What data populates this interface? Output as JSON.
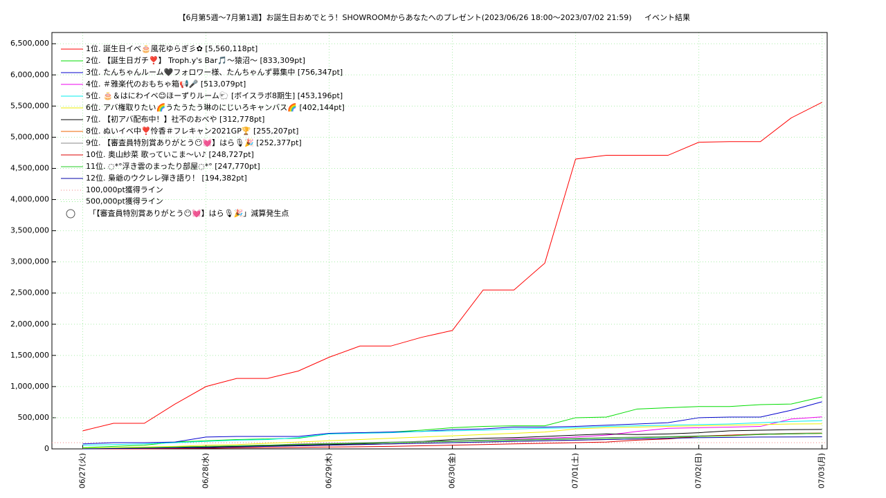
{
  "chart_data": {
    "type": "line",
    "title": "【6月第5週～7月第1週】お誕生日おめでとう！SHOWROOMからあなたへのプレゼント(2023/06/26 18:00～2023/07/02 21:59)",
    "subtitle": "イベント結果",
    "x": [
      0,
      6,
      12,
      18,
      24,
      30,
      36,
      42,
      48,
      54,
      60,
      66,
      72,
      78,
      84,
      90,
      96,
      102,
      108,
      114,
      120,
      126,
      132,
      138,
      144
    ],
    "xlim": [
      -6,
      145
    ],
    "xticks": [
      {
        "value": 0,
        "label": "06/27(火)"
      },
      {
        "value": 24,
        "label": "06/28(水)"
      },
      {
        "value": 48,
        "label": "06/29(木)"
      },
      {
        "value": 72,
        "label": "06/30(金)"
      },
      {
        "value": 96,
        "label": "07/01(土)"
      },
      {
        "value": 120,
        "label": "07/02(日)"
      },
      {
        "value": 144,
        "label": "07/03(月)"
      }
    ],
    "ylim": [
      0,
      6680000
    ],
    "yticks": [
      0,
      {
        "value": 500000,
        "label": "500,000"
      },
      {
        "value": 1000000,
        "label": "1,000,000"
      },
      {
        "value": 1500000,
        "label": "1,500,000"
      },
      {
        "value": 2000000,
        "label": "2,000,000"
      },
      {
        "value": 2500000,
        "label": "2,500,000"
      },
      {
        "value": 3000000,
        "label": "3,000,000"
      },
      {
        "value": 3500000,
        "label": "3,500,000"
      },
      {
        "value": 4000000,
        "label": "4,000,000"
      },
      {
        "value": 4500000,
        "label": "4,500,000"
      },
      {
        "value": 5000000,
        "label": "5,000,000"
      },
      {
        "value": 5500000,
        "label": "5,500,000"
      },
      {
        "value": 6000000,
        "label": "6,000,000"
      },
      {
        "value": 6500000,
        "label": "6,500,000"
      }
    ],
    "grid": true,
    "legend": "top-left",
    "series": [
      {
        "name": "1位. 誕生日イベ🎂風花ゆらぎ彡✿ [5,560,118pt]",
        "color": "#ff0000",
        "values": [
          290000,
          410000,
          410000,
          720000,
          1000000,
          1130000,
          1130000,
          1250000,
          1470000,
          1650000,
          1650000,
          1790000,
          1900000,
          2550000,
          2550000,
          2980000,
          4650000,
          4710000,
          4710000,
          4710000,
          4920000,
          4930000,
          4930000,
          5310000,
          5560118
        ]
      },
      {
        "name": "2位. 【誕生日ガチ❣️】 Troph.y's Bar🎵〜猿沼〜 [833,309pt]",
        "color": "#00dd00",
        "values": [
          20000,
          40000,
          60000,
          110000,
          130000,
          150000,
          160000,
          170000,
          240000,
          260000,
          270000,
          300000,
          340000,
          360000,
          370000,
          370000,
          500000,
          510000,
          640000,
          660000,
          680000,
          680000,
          710000,
          720000,
          833309
        ]
      },
      {
        "name": "3位. たんちゃんルーム🖤フォロワー様、たんちゃんず募集中 [756,347pt]",
        "color": "#0000cc",
        "values": [
          80000,
          100000,
          100000,
          110000,
          190000,
          200000,
          200000,
          200000,
          250000,
          260000,
          270000,
          280000,
          310000,
          320000,
          350000,
          350000,
          360000,
          380000,
          400000,
          420000,
          500000,
          510000,
          510000,
          620000,
          756347
        ]
      },
      {
        "name": "4位. ＃雅楽代のおもちゃ箱📢🎤 [513,079pt]",
        "color": "#ee00ee",
        "values": [
          0,
          10000,
          20000,
          30000,
          40000,
          50000,
          60000,
          70000,
          80000,
          90000,
          100000,
          110000,
          120000,
          140000,
          160000,
          170000,
          190000,
          220000,
          280000,
          330000,
          340000,
          350000,
          360000,
          480000,
          513079
        ]
      },
      {
        "name": "5位. 🎂＆はにわイベ😊ほーずりルーム🐑 [ボイスラボ8期生] [453,196pt]",
        "color": "#00eeee",
        "values": [
          60000,
          70000,
          80000,
          100000,
          120000,
          140000,
          150000,
          180000,
          240000,
          250000,
          260000,
          280000,
          290000,
          300000,
          320000,
          330000,
          340000,
          360000,
          370000,
          380000,
          390000,
          400000,
          420000,
          440000,
          453196
        ]
      },
      {
        "name": "6位. アバ権取りたい🌈うたうたう琳のにじいろキャンバス🌈 [402,144pt]",
        "color": "#eeee00",
        "values": [
          10000,
          20000,
          30000,
          40000,
          60000,
          70000,
          90000,
          110000,
          130000,
          150000,
          170000,
          190000,
          210000,
          230000,
          250000,
          270000,
          320000,
          340000,
          350000,
          360000,
          370000,
          380000,
          390000,
          400000,
          402144
        ]
      },
      {
        "name": "7位. 【初アバ配布中！】社不のおべや [312,778pt]",
        "color": "#000000",
        "values": [
          0,
          5000,
          10000,
          20000,
          30000,
          40000,
          50000,
          60000,
          70000,
          80000,
          100000,
          120000,
          150000,
          170000,
          180000,
          200000,
          220000,
          240000,
          230000,
          240000,
          260000,
          290000,
          300000,
          310000,
          312778
        ]
      },
      {
        "name": "8位. ぬいイベ中❣️怜香＃フレキャン2021GP🏆 [255,207pt]",
        "color": "#ee6600",
        "values": [
          0,
          5000,
          10000,
          15000,
          20000,
          30000,
          40000,
          50000,
          60000,
          70000,
          80000,
          90000,
          100000,
          110000,
          120000,
          130000,
          140000,
          150000,
          160000,
          170000,
          200000,
          220000,
          240000,
          250000,
          255207
        ]
      },
      {
        "name": "9位. 【審査員特別賞ありがとう😶💓】はら🎙🎉 [252,377pt]",
        "color": "#888888",
        "values": [
          0,
          10000,
          20000,
          30000,
          40000,
          50000,
          60000,
          80000,
          90000,
          100000,
          110000,
          120000,
          130000,
          140000,
          150000,
          160000,
          170000,
          180000,
          190000,
          200000,
          210000,
          220000,
          240000,
          250000,
          252377
        ]
      },
      {
        "name": "10位. 奥山紗菜 歌っていこま〜い♪ [248,727pt]",
        "color": "#dd0000",
        "values": [
          0,
          0,
          0,
          5000,
          10000,
          15000,
          20000,
          25000,
          30000,
          35000,
          40000,
          50000,
          60000,
          70000,
          80000,
          90000,
          100000,
          110000,
          140000,
          160000,
          200000,
          220000,
          230000,
          240000,
          248727
        ]
      },
      {
        "name": "11位. ◌*°浮き雲のまったり部屋◌*° [247,770pt]",
        "color": "#22cc22",
        "values": [
          0,
          10000,
          20000,
          30000,
          40000,
          50000,
          60000,
          70000,
          80000,
          90000,
          100000,
          110000,
          120000,
          130000,
          140000,
          150000,
          160000,
          170000,
          180000,
          190000,
          200000,
          210000,
          230000,
          240000,
          247770
        ]
      },
      {
        "name": "12位. 梟爺のウクレレ弾き語り！ [194,382pt]",
        "color": "#0000aa",
        "values": [
          0,
          5000,
          10000,
          15000,
          20000,
          30000,
          40000,
          50000,
          60000,
          70000,
          80000,
          90000,
          100000,
          110000,
          120000,
          130000,
          140000,
          150000,
          160000,
          170000,
          180000,
          185000,
          190000,
          192000,
          194382
        ]
      }
    ],
    "reference_lines": [
      {
        "name": "100,000pt獲得ライン",
        "value": 100000,
        "color": "#f08080"
      },
      {
        "name": "500,000pt獲得ライン",
        "value": 500000,
        "color": "#90ee90"
      }
    ],
    "marker_legend": "「【審査員特別賞ありがとう😶💓】はら🎙🎉」減算発生点"
  }
}
